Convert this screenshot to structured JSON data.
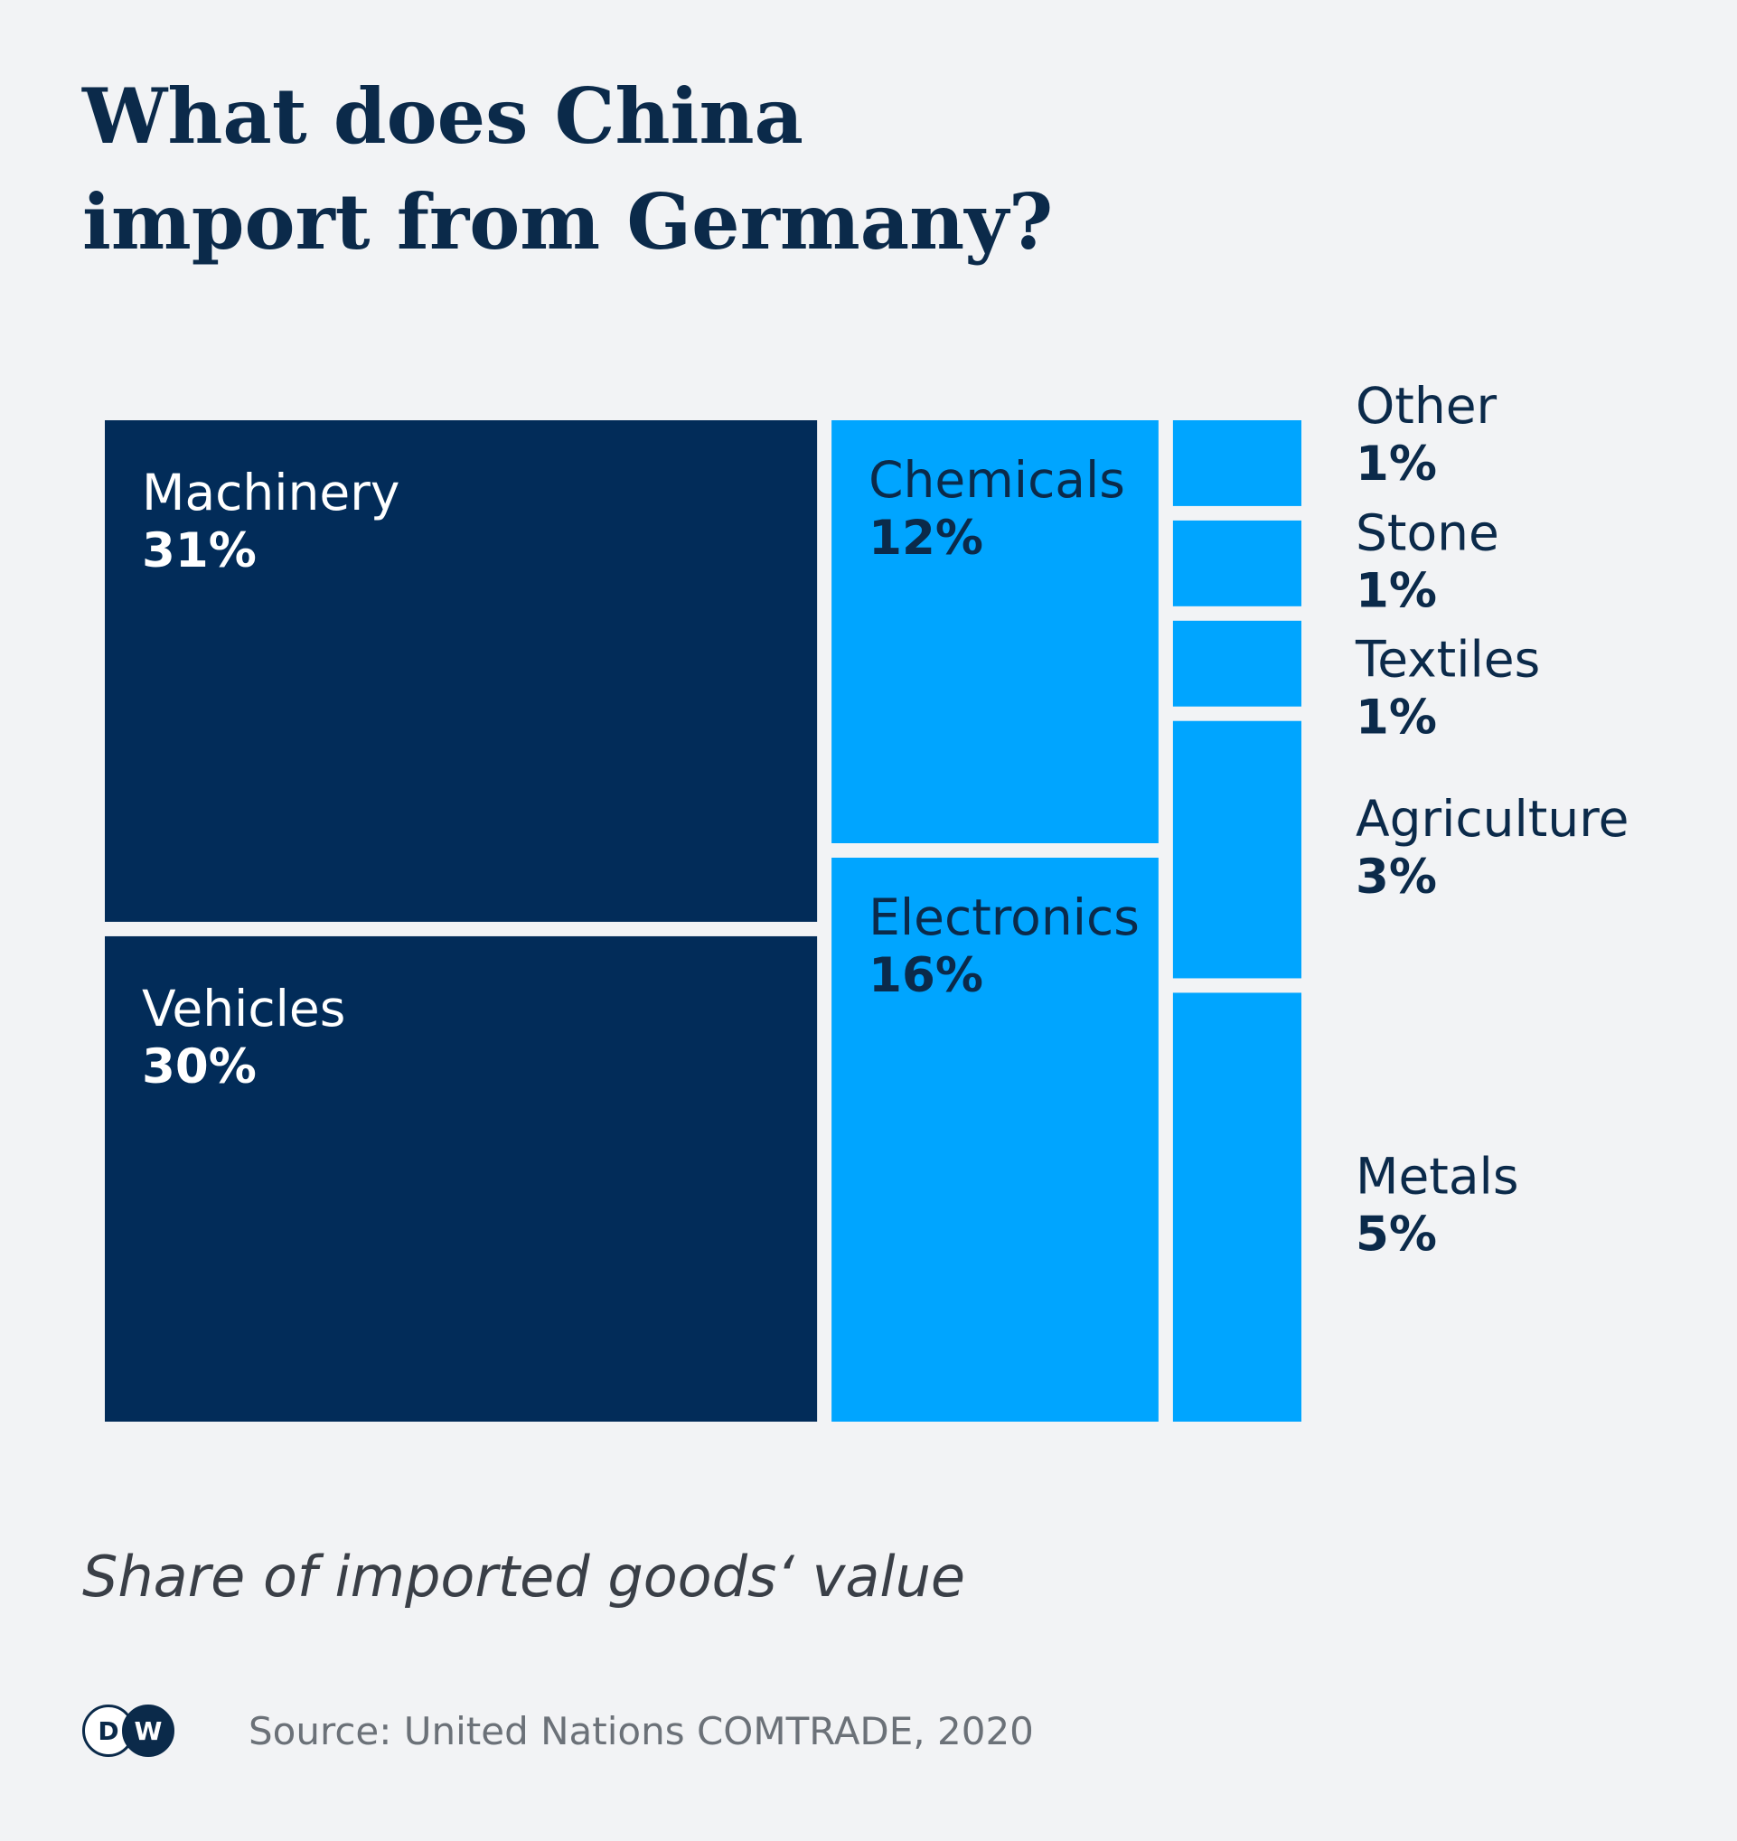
{
  "title_lines": [
    "What does China",
    "import from Germany?"
  ],
  "subtitle": "Share of imported goods‘ value",
  "source": "Source: United Nations COMTRADE, 2020",
  "logo": {
    "d": "D",
    "w": "W"
  },
  "colors": {
    "dark": "#022c59",
    "light": "#00a5ff",
    "background": "#f2f3f5",
    "text": "#0b2a4a"
  },
  "chart_data": {
    "type": "treemap",
    "unit": "%",
    "items": [
      {
        "name": "Machinery",
        "value": 31,
        "label": "31%",
        "color": "dark"
      },
      {
        "name": "Vehicles",
        "value": 30,
        "label": "30%",
        "color": "dark"
      },
      {
        "name": "Chemicals",
        "value": 12,
        "label": "12%",
        "color": "light"
      },
      {
        "name": "Electronics",
        "value": 16,
        "label": "16%",
        "color": "light"
      },
      {
        "name": "Other",
        "value": 1,
        "label": "1%",
        "color": "light"
      },
      {
        "name": "Stone",
        "value": 1,
        "label": "1%",
        "color": "light"
      },
      {
        "name": "Textiles",
        "value": 1,
        "label": "1%",
        "color": "light"
      },
      {
        "name": "Agriculture",
        "value": 3,
        "label": "3%",
        "color": "light"
      },
      {
        "name": "Metals",
        "value": 5,
        "label": "5%",
        "color": "light"
      }
    ]
  }
}
